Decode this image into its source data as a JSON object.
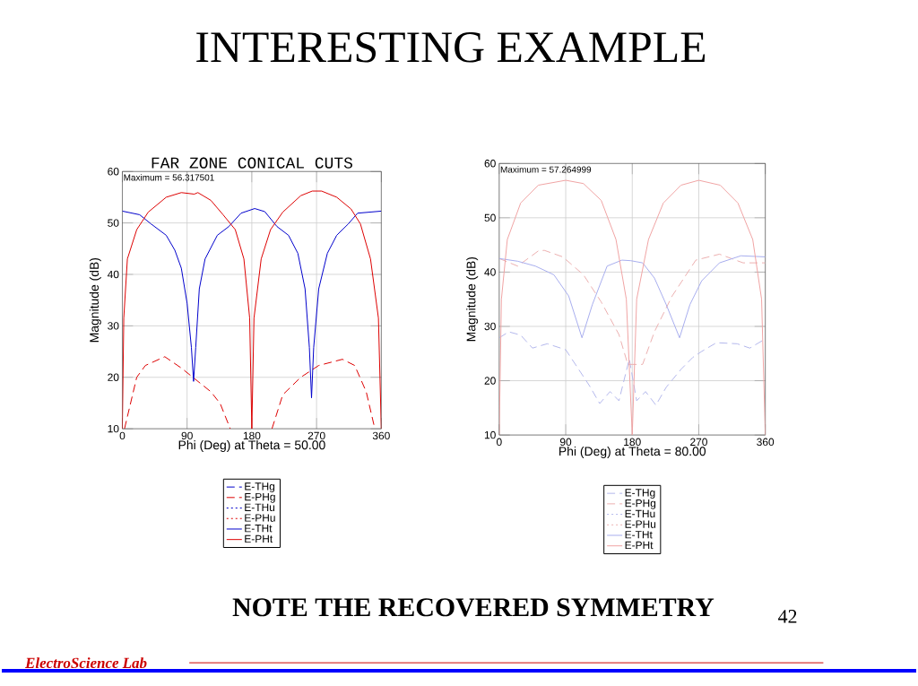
{
  "chart_data": [
    {
      "type": "line",
      "title": "FAR ZONE CONICAL CUTS",
      "xlabel": "Phi (Deg) at Theta = 50.00",
      "ylabel": "Magnitude (dB)",
      "xlim": [
        0,
        360
      ],
      "ylim": [
        10,
        60
      ],
      "xticks": [
        0,
        90,
        180,
        270,
        360
      ],
      "yticks": [
        10,
        20,
        30,
        40,
        50,
        60
      ],
      "grid": true,
      "legend": "bottom",
      "annotations": [
        "Maximum = 56.317501"
      ],
      "series": [
        {
          "name": "E-THg",
          "color": "#0000cc",
          "line_style": "dashed",
          "values": [
            null
          ]
        },
        {
          "name": "E-PHg",
          "color": "#dd0000",
          "line_style": "dashed",
          "x": [
            3,
            20,
            32,
            59,
            82,
            98,
            123,
            136,
            150,
            180,
            208,
            223,
            248,
            273,
            306,
            323,
            339,
            351
          ],
          "values": [
            10,
            20,
            22.3,
            24,
            21.8,
            20,
            17.2,
            14.9,
            10,
            null,
            10,
            16.6,
            20,
            22.3,
            23.5,
            22.3,
            17.2,
            10
          ]
        },
        {
          "name": "E-THu",
          "color": "#0000cc",
          "line_style": "dotted",
          "values": [
            null
          ]
        },
        {
          "name": "E-PHu",
          "color": "#dd0000",
          "line_style": "dotted",
          "values": [
            null
          ]
        },
        {
          "name": "E-THt",
          "color": "#0000cc",
          "line_style": "solid",
          "x": [
            0,
            24,
            40,
            61,
            73,
            82,
            90,
            96,
            99,
            102,
            107,
            115,
            132,
            148,
            165,
            184,
            198,
            215,
            231,
            244,
            254,
            260,
            263,
            266,
            273,
            285,
            298,
            314,
            327,
            360
          ],
          "values": [
            52.3,
            51.6,
            49.8,
            47.6,
            44.7,
            41.2,
            34.4,
            25.8,
            19.2,
            25.8,
            37.2,
            43,
            47.6,
            49.3,
            51.9,
            52.8,
            52.2,
            49.3,
            47.6,
            44.1,
            37.2,
            25.8,
            16,
            25.8,
            37.2,
            44.1,
            47.6,
            49.8,
            51.9,
            52.3
          ]
        },
        {
          "name": "E-PHt",
          "color": "#dd0000",
          "line_style": "solid",
          "x": [
            0,
            2,
            7,
            20,
            36,
            61,
            82,
            100,
            105,
            123,
            140,
            157,
            169,
            177,
            180,
            183,
            193,
            206,
            223,
            248,
            264,
            277,
            298,
            318,
            331,
            345,
            356,
            360
          ],
          "values": [
            10,
            31.5,
            43,
            48.7,
            52.1,
            55,
            55.9,
            55.6,
            55.9,
            54.4,
            51.6,
            48.7,
            43,
            31.5,
            10,
            31.5,
            43,
            48.7,
            52.1,
            55.3,
            56.2,
            56.2,
            55,
            52.7,
            49.8,
            43,
            31.5,
            10
          ]
        }
      ]
    },
    {
      "type": "line",
      "xlabel": "Phi (Deg) at Theta = 80.00",
      "ylabel": "Magnitude (dB)",
      "xlim": [
        0,
        360
      ],
      "ylim": [
        10,
        60
      ],
      "xticks": [
        0,
        90,
        180,
        270,
        360
      ],
      "yticks": [
        10,
        20,
        30,
        40,
        50,
        60
      ],
      "grid": true,
      "legend": "bottom",
      "annotations": [
        "Maximum = 57.264999"
      ],
      "series": [
        {
          "name": "E-THg",
          "color": "#b4b8ec",
          "line_style": "dashed",
          "x": [
            0,
            13,
            29,
            45,
            65,
            90,
            106,
            122,
            136,
            150,
            162,
            176,
            186,
            198,
            212,
            226,
            246,
            262,
            274,
            294,
            322,
            339,
            360
          ],
          "values": [
            27.9,
            29,
            28.4,
            26,
            26.8,
            25.7,
            22.4,
            19.1,
            15.8,
            18,
            16.3,
            24,
            16.3,
            18,
            15.5,
            18.8,
            22.1,
            24.3,
            25.4,
            27,
            26.8,
            26,
            27.7
          ]
        },
        {
          "name": "E-PHg",
          "color": "#ecb0b0",
          "line_style": "dashed",
          "x": [
            0,
            25,
            53,
            61,
            86,
            114,
            138,
            162,
            174,
            194,
            210,
            234,
            266,
            298,
            330,
            360
          ],
          "values": [
            42.5,
            41.1,
            43.9,
            44,
            42.8,
            39.5,
            34.5,
            28.5,
            23,
            23,
            29,
            35.6,
            42.2,
            43.3,
            41.7,
            41.7
          ]
        },
        {
          "name": "E-THu",
          "color": "#b4b8ec",
          "line_style": "dotted",
          "values": [
            null
          ]
        },
        {
          "name": "E-PHu",
          "color": "#ecb0b0",
          "line_style": "dotted",
          "values": [
            null
          ]
        },
        {
          "name": "E-THt",
          "color": "#a8aeee",
          "line_style": "solid",
          "x": [
            0,
            25,
            49,
            74,
            94,
            112,
            126,
            146,
            166,
            178,
            194,
            210,
            226,
            244,
            258,
            274,
            298,
            327,
            360
          ],
          "values": [
            42.5,
            42,
            41.1,
            39.5,
            35.6,
            27.9,
            34,
            41.1,
            42.2,
            42.1,
            41.7,
            38.9,
            34,
            27.9,
            34,
            38.4,
            41.7,
            43,
            42.8
          ]
        },
        {
          "name": "E-PHt",
          "color": "#f0a4a4",
          "line_style": "solid",
          "x": [
            0,
            3,
            11,
            29,
            53,
            90,
            114,
            138,
            158,
            172,
            180,
            186,
            202,
            222,
            246,
            270,
            299,
            323,
            343,
            355,
            360
          ],
          "values": [
            10,
            35,
            46,
            52.7,
            56,
            56.9,
            56.3,
            53.2,
            46,
            35,
            10,
            35,
            46,
            52.7,
            56,
            56.9,
            56,
            52.7,
            46,
            35,
            10
          ]
        }
      ]
    },
    {
      "type": "other",
      "title": "INTERESTING EXAMPLE",
      "annotations": [
        "NOTE THE RECOVERED SYMMETRY",
        "42",
        "ElectroScience Lab"
      ]
    }
  ]
}
